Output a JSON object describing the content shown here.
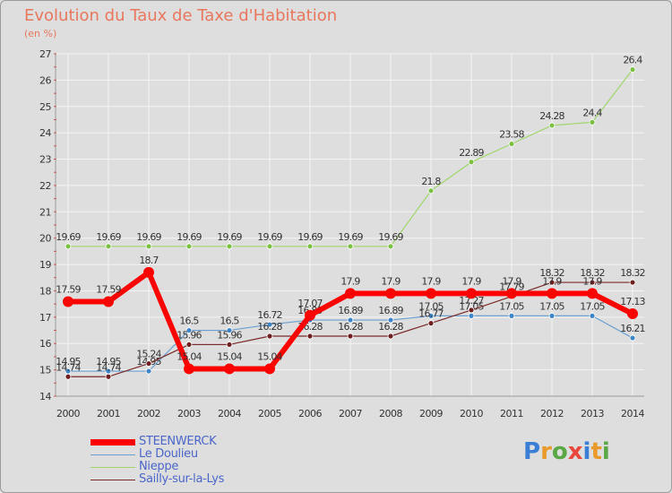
{
  "title": "Evolution du Taux de Taxe d'Habitation",
  "subtitle": "(en %)",
  "logo": {
    "letters": [
      "P",
      "r",
      "o",
      "x",
      "i",
      "t",
      "i"
    ],
    "colors": [
      "#3a7fd5",
      "#e89a2a",
      "#5aa845",
      "#e8473b",
      "#3a7fd5",
      "#e89a2a",
      "#5aa845"
    ]
  },
  "chart_data": {
    "type": "line",
    "x": [
      2000,
      2001,
      2002,
      2003,
      2004,
      2005,
      2006,
      2007,
      2008,
      2009,
      2010,
      2011,
      2012,
      2013,
      2014
    ],
    "ylim": [
      14,
      27
    ],
    "yticks": [
      14,
      15,
      16,
      17,
      18,
      19,
      20,
      21,
      22,
      23,
      24,
      25,
      26,
      27
    ],
    "grid": true,
    "legend_position": "bottom-left",
    "series": [
      {
        "name": "Nieppe",
        "color": "#9fd66a",
        "marker": "#7bc043",
        "values": [
          19.69,
          19.69,
          19.69,
          19.69,
          19.69,
          19.69,
          19.69,
          19.69,
          19.69,
          21.8,
          22.89,
          23.58,
          24.28,
          24.4,
          26.4
        ],
        "labels": [
          "19.69",
          "19.69",
          "19.69",
          "19.69",
          "19.69",
          "19.69",
          "19.69",
          "19.69",
          "19.69",
          "21.8",
          "22.89",
          "23.58",
          "24.28",
          "24.4",
          "26.4"
        ]
      },
      {
        "name": "Le Doulieu",
        "color": "#6aa0d0",
        "marker": "#3d85c6",
        "values": [
          14.95,
          14.95,
          14.95,
          16.5,
          16.5,
          16.72,
          16.89,
          16.89,
          16.89,
          17.05,
          17.05,
          17.05,
          17.05,
          17.05,
          16.21
        ],
        "labels": [
          "14.95",
          "14.95",
          "14.95",
          "16.5",
          "16.5",
          "16.72",
          "16.89",
          "16.89",
          "16.89",
          "17.05",
          "17.05",
          "17.05",
          "17.05",
          "17.05",
          "16.21"
        ]
      },
      {
        "name": "Sailly-sur-la-Lys",
        "color": "#7a2a2a",
        "marker": "#6e1f1f",
        "values": [
          14.74,
          14.74,
          15.24,
          15.96,
          15.96,
          16.28,
          16.28,
          16.28,
          16.28,
          16.77,
          17.27,
          17.79,
          18.32,
          18.32,
          18.32
        ],
        "labels": [
          "14.74",
          "14.74",
          "15.24",
          "15.96",
          "15.96",
          "16.28",
          "16.28",
          "16.28",
          "16.28",
          "16.77",
          "17.27",
          "17.79",
          "18.32",
          "18.32",
          "18.32"
        ]
      },
      {
        "name": "STEENWERCK",
        "color": "#ff0000",
        "marker": "#ff0000",
        "thick": true,
        "values": [
          17.59,
          17.59,
          18.7,
          15.04,
          15.04,
          15.04,
          17.07,
          17.9,
          17.9,
          17.9,
          17.9,
          17.9,
          17.9,
          17.9,
          17.13
        ],
        "labels": [
          "17.59",
          "17.59",
          "18.7",
          "15.04",
          "15.04",
          "15.04",
          "17.07",
          "17.9",
          "17.9",
          "17.9",
          "17.9",
          "17.9",
          "17.9",
          "17.9",
          "17.13"
        ]
      }
    ],
    "legend_order": [
      "STEENWERCK",
      "Le Doulieu",
      "Nieppe",
      "Sailly-sur-la-Lys"
    ]
  }
}
